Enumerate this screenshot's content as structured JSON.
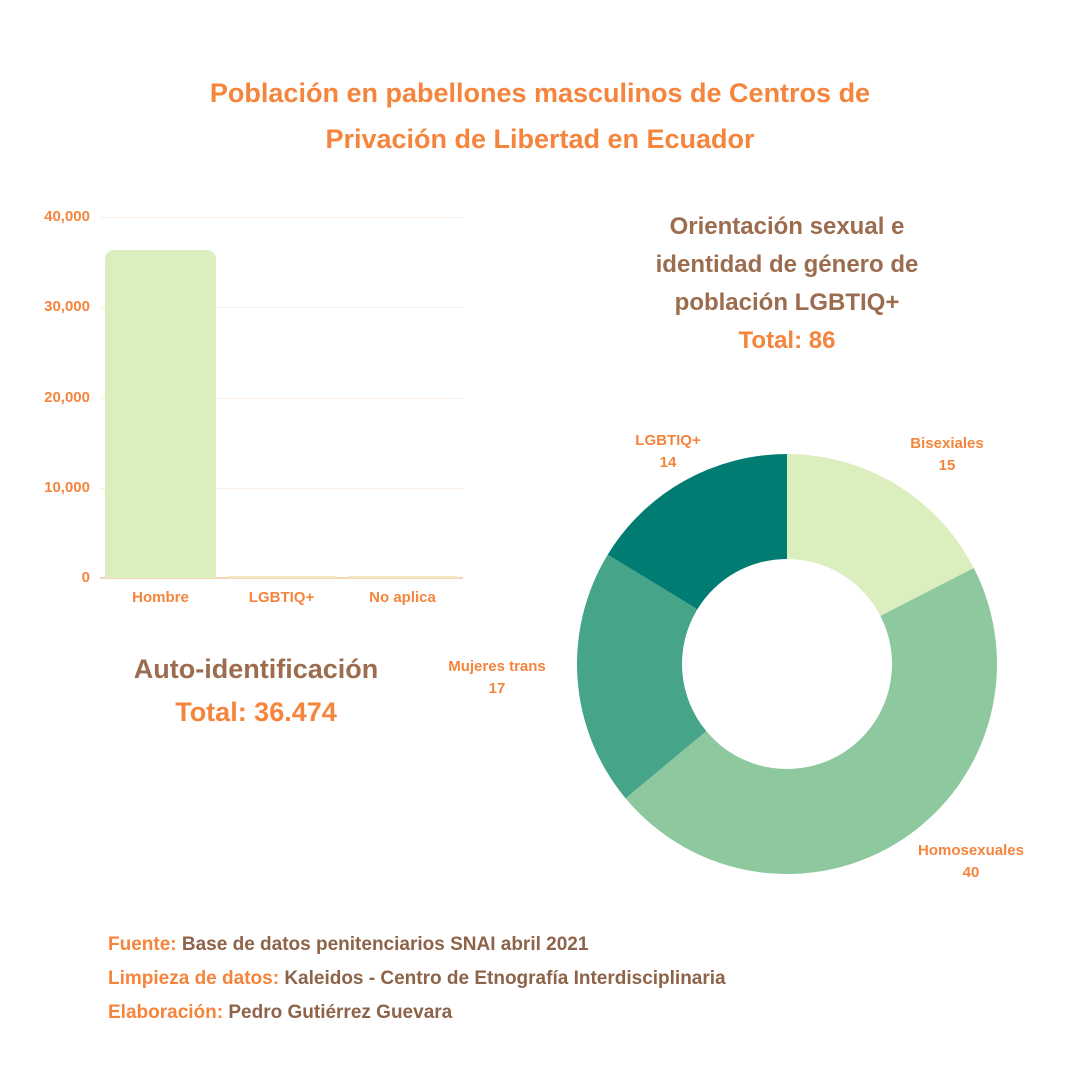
{
  "colors": {
    "orange": "#F5843C",
    "brown": "#9C6C4F",
    "brown_dark": "#8D6349",
    "light_green": "#DAEEBE",
    "medium_green": "#8DC89F",
    "teal": "#46A489",
    "dark_teal": "#007C72",
    "tan": "#EFE9C4",
    "gridline": "#FCEDE2",
    "baseline": "#F6D5B4",
    "background": "#FFFFFF"
  },
  "title": {
    "lines": [
      "Población en pabellones masculinos de Centros de",
      "Privación de Libertad en Ecuador"
    ]
  },
  "chart_data": [
    {
      "type": "bar",
      "title": "Auto-identificación",
      "subtitle": "Total: 36.474",
      "total": 36474,
      "categories": [
        "Hombre",
        "LGBTIQ+",
        "No aplica"
      ],
      "values": [
        36300,
        86,
        88
      ],
      "bar_colors": [
        "#DAEEBE",
        "#EFE9C4",
        "#EFE9C4"
      ],
      "ylabel": "",
      "xlabel": "",
      "ylim": [
        0,
        40000
      ],
      "ytick_labels": [
        "40,000",
        "30,000",
        "20,000",
        "10,000",
        "0"
      ],
      "ytick_values": [
        40000,
        30000,
        20000,
        10000,
        0
      ],
      "grid": true
    },
    {
      "type": "pie",
      "donut": true,
      "title_lines": [
        "Orientación sexual e",
        "identidad de género de",
        "población LGBTIQ+"
      ],
      "subtitle": "Total: 86",
      "total": 86,
      "start_angle": "top",
      "direction": "clockwise",
      "inner_radius_ratio": 0.5,
      "slices": [
        {
          "label": "Bisexiales",
          "value": 15,
          "color": "#DAEEBE"
        },
        {
          "label": "Homosexuales",
          "value": 40,
          "color": "#8DC89F"
        },
        {
          "label": "Mujeres trans",
          "value": 17,
          "color": "#46A489"
        },
        {
          "label": "LGBTIQ+",
          "value": 14,
          "color": "#007C72"
        }
      ]
    }
  ],
  "footer": {
    "lines": [
      {
        "label": "Fuente:",
        "text": "Base de datos penitenciarios SNAI abril 2021"
      },
      {
        "label": "Limpieza de datos:",
        "text": "Kaleidos - Centro de Etnografía Interdisciplinaria"
      },
      {
        "label": "Elaboración:",
        "text": "Pedro Gutiérrez Guevara"
      }
    ]
  }
}
